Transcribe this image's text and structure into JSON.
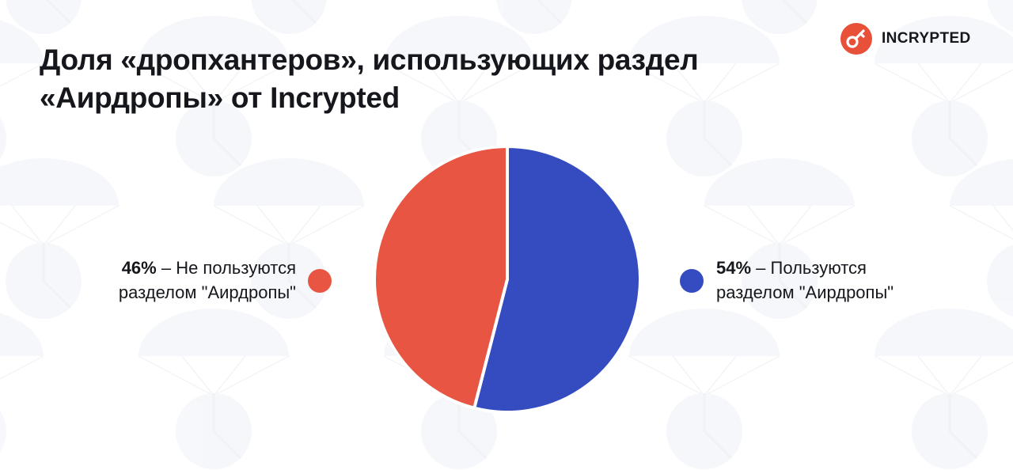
{
  "title": {
    "line1": "Доля «дропхантеров», использующих раздел",
    "line2": "«Аирдропы» от Incrypted"
  },
  "brand": {
    "name": "INCRYPTED",
    "color": "#e8503a",
    "icon": "key-icon"
  },
  "colors": {
    "not_using": "#e85643",
    "using": "#354cc0"
  },
  "legend": [
    {
      "pct": "46%",
      "line1": " – Не пользуются",
      "line2": "разделом \"Аирдропы\""
    },
    {
      "pct": "54%",
      "line1": " – Пользуются",
      "line2": "разделом \"Аирдропы\""
    }
  ],
  "chart_data": {
    "type": "pie",
    "title": "Доля «дропхантеров», использующих раздел «Аирдропы» от Incrypted",
    "slices": [
      {
        "label": "Пользуются разделом \"Аирдропы\"",
        "value": 54,
        "color": "#354cc0"
      },
      {
        "label": "Не пользуются разделом \"Аирдропы\"",
        "value": 46,
        "color": "#e85643"
      }
    ],
    "start_angle_deg": 0,
    "direction": "clockwise",
    "legend_placement": "sides"
  }
}
